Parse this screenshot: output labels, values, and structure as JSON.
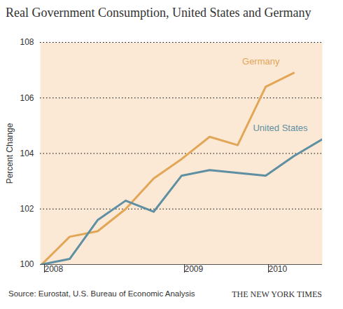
{
  "chart_data": {
    "type": "line",
    "title": "Real Government Consumption, United States and Germany",
    "y_label": "Percent Change",
    "source": "Source: Eurostat, U.S. Bureau of Economic Analysis",
    "credit": "THE NEW YORK TIMES",
    "categories": [
      "2008",
      null,
      null,
      null,
      null,
      "2009",
      null,
      null,
      "2010",
      null,
      null
    ],
    "series": [
      {
        "name": "Germany",
        "color": "#e2a657",
        "values": [
          100,
          101.0,
          101.2,
          102.0,
          103.1,
          103.8,
          104.6,
          104.3,
          106.4,
          106.9,
          null
        ]
      },
      {
        "name": "United States",
        "color": "#5e8fa2",
        "values": [
          100,
          100.2,
          101.6,
          102.3,
          101.9,
          103.2,
          103.4,
          103.3,
          103.2,
          103.9,
          104.5
        ]
      }
    ],
    "ylim": [
      100,
      108
    ],
    "yticks": [
      100,
      102,
      104,
      106,
      108
    ],
    "grid": true
  }
}
